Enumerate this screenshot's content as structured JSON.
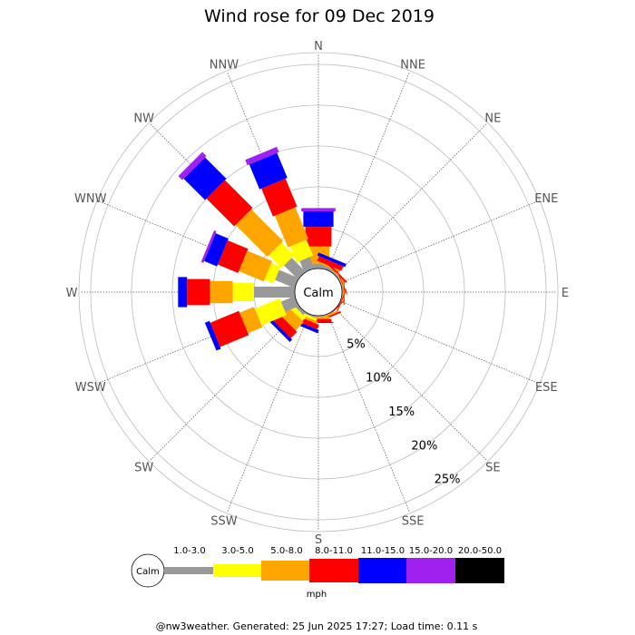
{
  "title": "Wind rose for 09 Dec 2019",
  "calm_label": "Calm",
  "unit_label": "mph",
  "footer": "@nw3weather. Generated: 25 Jun 2025 17:27; Load time: 0.11 s",
  "chart_data": {
    "type": "wind-rose",
    "title": "Wind rose for 09 Dec 2019",
    "directions": [
      "N",
      "NNE",
      "NE",
      "ENE",
      "E",
      "ESE",
      "SE",
      "SSE",
      "S",
      "SSW",
      "SW",
      "WSW",
      "W",
      "WNW",
      "NW",
      "NNW"
    ],
    "radial_ticks": [
      "5%",
      "10%",
      "15%",
      "20%",
      "25%"
    ],
    "radial_tick_values": [
      5,
      10,
      15,
      20,
      25
    ],
    "speed_bins": [
      "1.0-3.0",
      "3.0-5.0",
      "5.0-8.0",
      "8.0-11.0",
      "11.0-15.0",
      "15.0-20.0",
      "20.0-50.0"
    ],
    "unit": "mph",
    "colors": [
      "#999999",
      "#ffff00",
      "#ffa500",
      "#ff0000",
      "#0000ff",
      "#a020f0",
      "#000000"
    ],
    "series": [
      {
        "direction": "N",
        "cumulative": [
          0.6,
          0.6,
          2.7,
          5.1,
          7.0,
          7.4,
          7.4
        ]
      },
      {
        "direction": "NNE",
        "cumulative": [
          0.4,
          0.4,
          0.6,
          1.2,
          1.6,
          1.6,
          1.6
        ]
      },
      {
        "direction": "NE",
        "cumulative": [
          0.2,
          0.2,
          0.3,
          0.5,
          0.5,
          0.5,
          0.5
        ]
      },
      {
        "direction": "ENE",
        "cumulative": [
          0.1,
          0.1,
          0.2,
          0.3,
          0.3,
          0.3,
          0.3
        ]
      },
      {
        "direction": "E",
        "cumulative": [
          0.1,
          0.1,
          0.2,
          0.3,
          0.3,
          0.3,
          0.3
        ]
      },
      {
        "direction": "ESE",
        "cumulative": [
          0.0,
          0.0,
          0.1,
          0.2,
          0.2,
          0.2,
          0.2
        ]
      },
      {
        "direction": "SE",
        "cumulative": [
          0.0,
          0.0,
          0.0,
          0.1,
          0.1,
          0.1,
          0.1
        ]
      },
      {
        "direction": "SSE",
        "cumulative": [
          0.1,
          0.1,
          0.3,
          0.5,
          0.5,
          0.5,
          0.5
        ]
      },
      {
        "direction": "S",
        "cumulative": [
          0.1,
          0.1,
          0.4,
          0.8,
          0.9,
          0.9,
          0.9
        ]
      },
      {
        "direction": "SSW",
        "cumulative": [
          0.2,
          0.5,
          0.8,
          1.4,
          1.8,
          1.8,
          1.8
        ]
      },
      {
        "direction": "SW",
        "cumulative": [
          0.4,
          1.0,
          2.4,
          3.5,
          3.9,
          3.9,
          3.9
        ]
      },
      {
        "direction": "WSW",
        "cumulative": [
          1.8,
          5.1,
          7.0,
          10.8,
          11.4,
          11.4,
          11.4
        ]
      },
      {
        "direction": "W",
        "cumulative": [
          5.0,
          7.6,
          10.4,
          13.2,
          14.3,
          14.3,
          14.3
        ]
      },
      {
        "direction": "WNW",
        "cumulative": [
          2.6,
          3.8,
          7.1,
          9.8,
          11.5,
          11.8,
          11.8
        ]
      },
      {
        "direction": "NW",
        "cumulative": [
          2.4,
          4.6,
          10.1,
          14.9,
          18.6,
          19.3,
          19.3
        ]
      },
      {
        "direction": "NNW",
        "cumulative": [
          1.5,
          3.6,
          7.8,
          11.5,
          14.8,
          15.5,
          15.5
        ]
      }
    ]
  }
}
